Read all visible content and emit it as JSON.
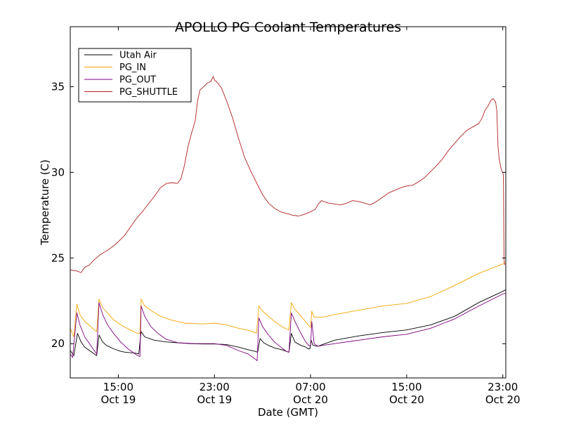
{
  "chart_data": {
    "type": "line",
    "title": "APOLLO PG Coolant Temperatures",
    "xlabel": "Date (GMT)",
    "ylabel": "Temperature (C)",
    "x_unit": "hours relative to Oct 19 07:00 GMT",
    "xlim": [
      4.0,
      40.25
    ],
    "ylim": [
      18,
      38.5
    ],
    "grid": false,
    "legend_position": "top-left",
    "x_ticks": [
      {
        "x": 8,
        "time": "15:00",
        "date": "Oct 19"
      },
      {
        "x": 16,
        "time": "23:00",
        "date": "Oct 19"
      },
      {
        "x": 24,
        "time": "07:00",
        "date": "Oct 20"
      },
      {
        "x": 32,
        "time": "15:00",
        "date": "Oct 20"
      },
      {
        "x": 40,
        "time": "23:00",
        "date": "Oct 20"
      }
    ],
    "y_ticks": [
      20,
      25,
      30,
      35
    ],
    "series": [
      {
        "name": "Utah Air",
        "color": "#000000",
        "points": [
          [
            4.0,
            19.6
          ],
          [
            4.3,
            19.3
          ],
          [
            4.6,
            20.6
          ],
          [
            4.9,
            20.1
          ],
          [
            5.2,
            19.8
          ],
          [
            5.6,
            19.6
          ],
          [
            6.0,
            19.4
          ],
          [
            6.2,
            19.3
          ],
          [
            6.4,
            20.5
          ],
          [
            6.7,
            20.1
          ],
          [
            7.0,
            19.9
          ],
          [
            7.6,
            19.7
          ],
          [
            8.2,
            19.55
          ],
          [
            8.6,
            19.5
          ],
          [
            9.4,
            19.45
          ],
          [
            9.7,
            19.4
          ],
          [
            9.9,
            20.7
          ],
          [
            10.2,
            20.4
          ],
          [
            11,
            20.2
          ],
          [
            12,
            20.1
          ],
          [
            13,
            20.05
          ],
          [
            14,
            20.0
          ],
          [
            15,
            19.98
          ],
          [
            16,
            19.98
          ],
          [
            17,
            19.95
          ],
          [
            18,
            19.8
          ],
          [
            18.8,
            19.65
          ],
          [
            19.4,
            19.55
          ],
          [
            19.6,
            19.5
          ],
          [
            19.8,
            20.3
          ],
          [
            20.1,
            20.05
          ],
          [
            20.5,
            19.9
          ],
          [
            21,
            19.75
          ],
          [
            21.6,
            19.65
          ],
          [
            22.0,
            19.55
          ],
          [
            22.2,
            19.5
          ],
          [
            22.4,
            20.6
          ],
          [
            22.7,
            20.1
          ],
          [
            23.2,
            19.9
          ],
          [
            23.6,
            19.8
          ],
          [
            23.8,
            19.7
          ],
          [
            23.95,
            19.7
          ],
          [
            24.05,
            20.2
          ],
          [
            24.2,
            19.9
          ],
          [
            24.6,
            19.85
          ],
          [
            25,
            19.95
          ],
          [
            26,
            20.2
          ],
          [
            28,
            20.45
          ],
          [
            30,
            20.65
          ],
          [
            32,
            20.8
          ],
          [
            34,
            21.1
          ],
          [
            36,
            21.6
          ],
          [
            38,
            22.4
          ],
          [
            40,
            23.05
          ],
          [
            40.25,
            23.15
          ]
        ]
      },
      {
        "name": "PG_IN",
        "color": "#f5a300",
        "points": [
          [
            4.0,
            20.9
          ],
          [
            4.3,
            20.4
          ],
          [
            4.55,
            22.3
          ],
          [
            4.8,
            21.7
          ],
          [
            5.2,
            21.3
          ],
          [
            5.7,
            21.0
          ],
          [
            6.0,
            20.8
          ],
          [
            6.2,
            20.7
          ],
          [
            6.4,
            22.6
          ],
          [
            6.7,
            22.1
          ],
          [
            7.1,
            21.8
          ],
          [
            7.6,
            21.4
          ],
          [
            8.2,
            21.1
          ],
          [
            9.0,
            20.8
          ],
          [
            9.6,
            20.6
          ],
          [
            9.8,
            20.6
          ],
          [
            9.9,
            22.6
          ],
          [
            10.2,
            22.2
          ],
          [
            10.8,
            21.9
          ],
          [
            11.5,
            21.6
          ],
          [
            12.3,
            21.4
          ],
          [
            13.5,
            21.2
          ],
          [
            15,
            21.15
          ],
          [
            16,
            21.2
          ],
          [
            17,
            21.1
          ],
          [
            18,
            20.9
          ],
          [
            19,
            20.75
          ],
          [
            19.5,
            20.6
          ],
          [
            19.7,
            22.2
          ],
          [
            20,
            21.9
          ],
          [
            20.5,
            21.6
          ],
          [
            21,
            21.3
          ],
          [
            21.6,
            21.0
          ],
          [
            22.0,
            20.85
          ],
          [
            22.2,
            20.8
          ],
          [
            22.4,
            22.4
          ],
          [
            22.7,
            22.0
          ],
          [
            23.2,
            21.6
          ],
          [
            23.7,
            21.2
          ],
          [
            23.9,
            21.0
          ],
          [
            24.0,
            20.95
          ],
          [
            24.1,
            21.9
          ],
          [
            24.3,
            21.55
          ],
          [
            25,
            21.55
          ],
          [
            26,
            21.7
          ],
          [
            28,
            21.95
          ],
          [
            30,
            22.2
          ],
          [
            32,
            22.35
          ],
          [
            34,
            22.75
          ],
          [
            36,
            23.4
          ],
          [
            38,
            24.1
          ],
          [
            40,
            24.65
          ],
          [
            40.25,
            24.7
          ]
        ]
      },
      {
        "name": "PG_OUT",
        "color": "#7f007f",
        "points": [
          [
            4.0,
            19.4
          ],
          [
            4.2,
            19.2
          ],
          [
            4.55,
            21.8
          ],
          [
            4.8,
            21.1
          ],
          [
            5.2,
            20.4
          ],
          [
            5.6,
            20.0
          ],
          [
            6.0,
            19.6
          ],
          [
            6.2,
            19.4
          ],
          [
            6.4,
            22.4
          ],
          [
            6.7,
            21.7
          ],
          [
            7.1,
            21.1
          ],
          [
            7.6,
            20.6
          ],
          [
            8.2,
            20.1
          ],
          [
            8.8,
            19.7
          ],
          [
            9.5,
            19.35
          ],
          [
            9.8,
            19.25
          ],
          [
            9.9,
            22.2
          ],
          [
            10.2,
            21.6
          ],
          [
            10.7,
            21.0
          ],
          [
            11.3,
            20.6
          ],
          [
            12,
            20.25
          ],
          [
            13,
            20.05
          ],
          [
            14.5,
            20.0
          ],
          [
            16,
            20.0
          ],
          [
            17,
            19.9
          ],
          [
            18,
            19.6
          ],
          [
            18.8,
            19.4
          ],
          [
            19.4,
            19.1
          ],
          [
            19.55,
            19.0
          ],
          [
            19.7,
            21.5
          ],
          [
            20,
            21.0
          ],
          [
            20.5,
            20.5
          ],
          [
            21,
            20.1
          ],
          [
            21.6,
            19.75
          ],
          [
            22.0,
            19.55
          ],
          [
            22.2,
            19.5
          ],
          [
            22.4,
            21.8
          ],
          [
            22.7,
            21.3
          ],
          [
            23.2,
            20.6
          ],
          [
            23.6,
            20.1
          ],
          [
            23.85,
            19.9
          ],
          [
            24.0,
            19.85
          ],
          [
            24.1,
            21.3
          ],
          [
            24.3,
            20.0
          ],
          [
            24.6,
            19.85
          ],
          [
            25,
            19.9
          ],
          [
            26,
            20.0
          ],
          [
            28,
            20.2
          ],
          [
            30,
            20.4
          ],
          [
            32,
            20.55
          ],
          [
            34,
            20.9
          ],
          [
            36,
            21.45
          ],
          [
            38,
            22.2
          ],
          [
            40,
            22.9
          ],
          [
            40.25,
            22.95
          ]
        ]
      },
      {
        "name": "PG_SHUTTLE",
        "color": "#b22222",
        "points": [
          [
            4.0,
            24.3
          ],
          [
            4.5,
            24.25
          ],
          [
            4.9,
            24.15
          ],
          [
            5.2,
            24.45
          ],
          [
            5.6,
            24.6
          ],
          [
            6.0,
            24.9
          ],
          [
            6.5,
            25.2
          ],
          [
            7.0,
            25.4
          ],
          [
            7.5,
            25.65
          ],
          [
            8.0,
            25.95
          ],
          [
            8.5,
            26.3
          ],
          [
            9.0,
            26.8
          ],
          [
            9.5,
            27.3
          ],
          [
            10.0,
            27.7
          ],
          [
            10.5,
            28.15
          ],
          [
            11.0,
            28.6
          ],
          [
            11.5,
            29.1
          ],
          [
            12.0,
            29.35
          ],
          [
            12.5,
            29.4
          ],
          [
            12.9,
            29.35
          ],
          [
            13.2,
            29.6
          ],
          [
            13.5,
            30.4
          ],
          [
            13.8,
            31.5
          ],
          [
            14.1,
            32.3
          ],
          [
            14.4,
            33.0
          ],
          [
            14.6,
            34.2
          ],
          [
            14.8,
            34.8
          ],
          [
            15.1,
            35.0
          ],
          [
            15.4,
            35.2
          ],
          [
            15.7,
            35.3
          ],
          [
            15.9,
            35.6
          ],
          [
            16.0,
            35.4
          ],
          [
            16.3,
            35.2
          ],
          [
            16.6,
            34.9
          ],
          [
            17.0,
            34.2
          ],
          [
            17.5,
            33.2
          ],
          [
            18.0,
            32.0
          ],
          [
            18.5,
            30.9
          ],
          [
            19.0,
            30.1
          ],
          [
            19.5,
            29.4
          ],
          [
            20.0,
            28.7
          ],
          [
            20.5,
            28.2
          ],
          [
            21.0,
            27.9
          ],
          [
            21.5,
            27.7
          ],
          [
            22.0,
            27.6
          ],
          [
            22.5,
            27.5
          ],
          [
            23.0,
            27.45
          ],
          [
            23.5,
            27.55
          ],
          [
            24.0,
            27.7
          ],
          [
            24.4,
            27.85
          ],
          [
            24.6,
            28.1
          ],
          [
            24.9,
            28.35
          ],
          [
            25.5,
            28.2
          ],
          [
            26.0,
            28.15
          ],
          [
            26.5,
            28.1
          ],
          [
            27.0,
            28.2
          ],
          [
            27.5,
            28.35
          ],
          [
            28.0,
            28.3
          ],
          [
            28.5,
            28.2
          ],
          [
            29.0,
            28.1
          ],
          [
            29.5,
            28.3
          ],
          [
            30.0,
            28.55
          ],
          [
            30.5,
            28.8
          ],
          [
            31.0,
            28.95
          ],
          [
            31.5,
            29.1
          ],
          [
            32.0,
            29.2
          ],
          [
            32.5,
            29.25
          ],
          [
            33.0,
            29.45
          ],
          [
            33.5,
            29.7
          ],
          [
            34.0,
            30.05
          ],
          [
            34.5,
            30.4
          ],
          [
            35.0,
            30.8
          ],
          [
            35.5,
            31.3
          ],
          [
            36.0,
            31.7
          ],
          [
            36.5,
            32.1
          ],
          [
            37.0,
            32.45
          ],
          [
            37.5,
            32.65
          ],
          [
            38.0,
            32.85
          ],
          [
            38.3,
            33.2
          ],
          [
            38.5,
            33.6
          ],
          [
            38.8,
            33.9
          ],
          [
            39.0,
            34.2
          ],
          [
            39.2,
            34.3
          ],
          [
            39.4,
            34.1
          ],
          [
            39.5,
            33.6
          ],
          [
            39.6,
            31.5
          ],
          [
            39.7,
            30.8
          ],
          [
            39.8,
            30.4
          ],
          [
            39.9,
            30.1
          ],
          [
            40.0,
            30.0
          ],
          [
            40.05,
            29.8
          ],
          [
            40.1,
            25.0
          ],
          [
            40.15,
            24.6
          ]
        ]
      }
    ]
  }
}
